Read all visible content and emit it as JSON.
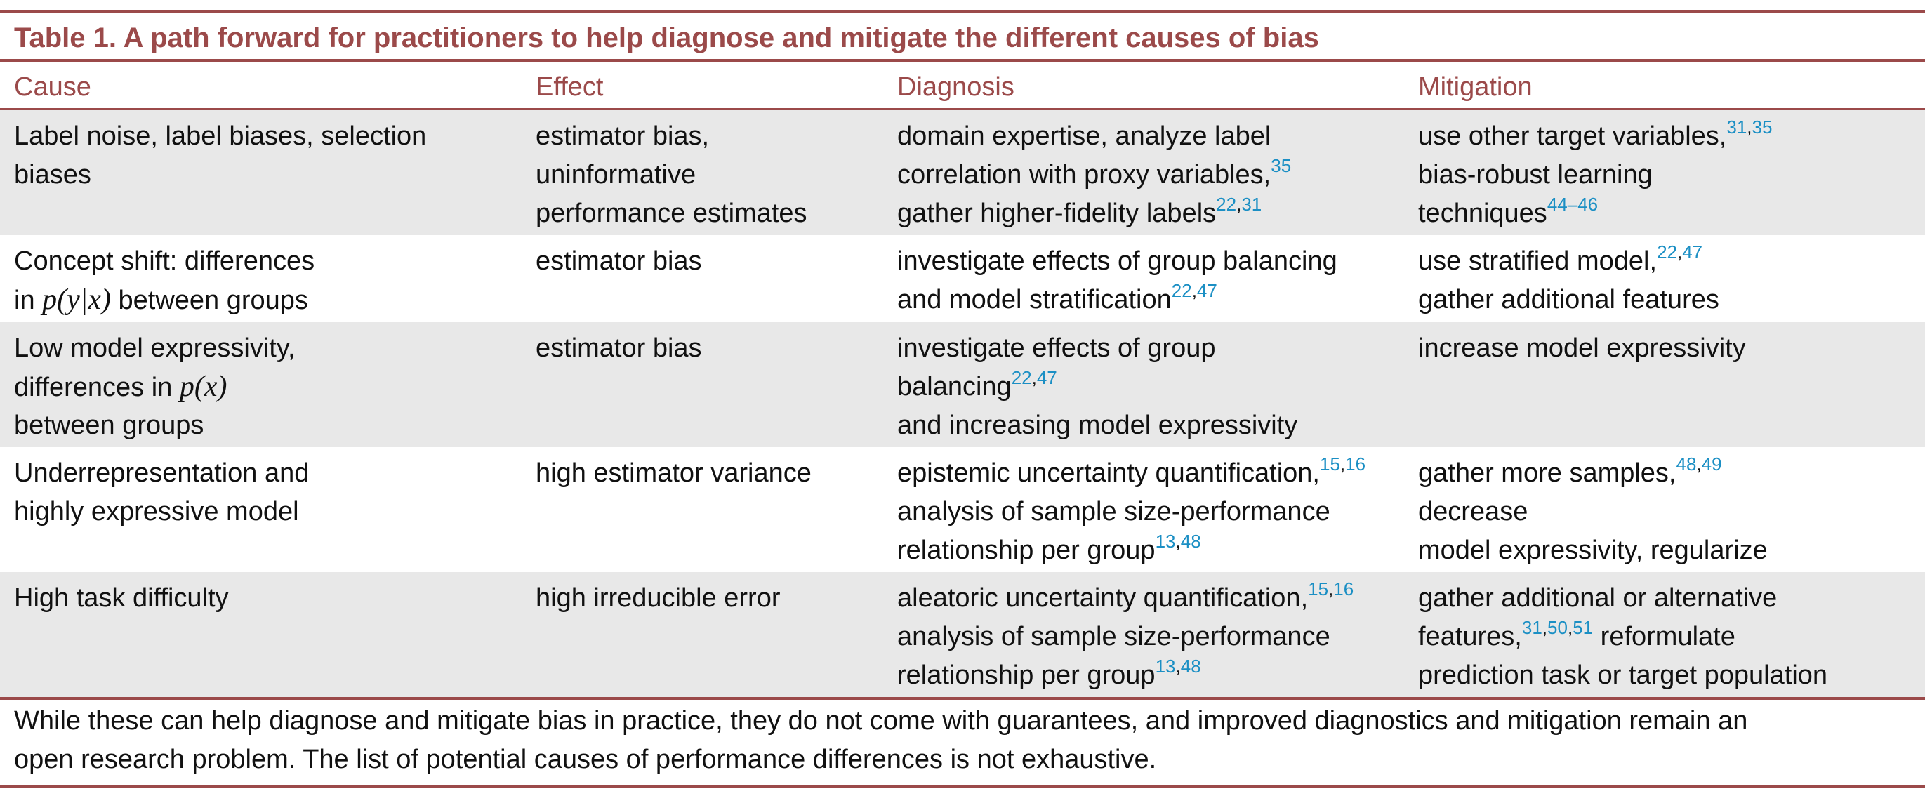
{
  "colors": {
    "accent": "#9b4a4a",
    "citation": "#1b8fc4",
    "row_shade": "#e8e8e8"
  },
  "table": {
    "title": "Table 1.  A path forward for practitioners to help diagnose and mitigate the different causes of bias",
    "headers": {
      "cause": "Cause",
      "effect": "Effect",
      "diagnosis": "Diagnosis",
      "mitigation": "Mitigation"
    },
    "rows": [
      {
        "cause": [
          "Label noise, label biases, selection",
          "biases"
        ],
        "effect": [
          "estimator bias,",
          "uninformative",
          "performance estimates"
        ],
        "diagnosis": {
          "l1": "domain expertise, analyze label",
          "l2": "correlation with proxy variables,",
          "l2_ref_a": "35",
          "l3": "gather higher-fidelity labels",
          "l3_ref_a": "22",
          "l3_ref_sep": ",",
          "l3_ref_b": "31"
        },
        "mitigation": {
          "l1": "use other target variables,",
          "l1_ref_a": "31",
          "l1_ref_sep": ",",
          "l1_ref_b": "35",
          "l2": "bias-robust learning",
          "l3": "techniques",
          "l3_ref_a": "44–46"
        }
      },
      {
        "cause": {
          "l1": "Concept shift: differences",
          "l2_pre": "in ",
          "l2_math": "p(y|x)",
          "l2_post": " between groups"
        },
        "effect": [
          "estimator bias"
        ],
        "diagnosis": {
          "l1": "investigate effects of group balancing",
          "l2": "and model stratification",
          "l2_ref_a": "22",
          "l2_ref_sep": ",",
          "l2_ref_b": "47"
        },
        "mitigation": {
          "l1": "use stratified model,",
          "l1_ref_a": "22",
          "l1_ref_sep": ",",
          "l1_ref_b": "47",
          "l2": "gather additional features"
        }
      },
      {
        "cause": {
          "l1": "Low model expressivity,",
          "l2_pre": "differences in ",
          "l2_math": "p(x)",
          "l3": "between groups"
        },
        "effect": [
          "estimator bias"
        ],
        "diagnosis": {
          "l1": "investigate effects of group",
          "l2": "balancing",
          "l2_ref_a": "22",
          "l2_ref_sep": ",",
          "l2_ref_b": "47",
          "l3": "and increasing model expressivity"
        },
        "mitigation": {
          "l1": "increase model expressivity"
        }
      },
      {
        "cause": [
          "Underrepresentation and",
          "highly expressive model"
        ],
        "effect": [
          "high estimator variance"
        ],
        "diagnosis": {
          "l1": "epistemic uncertainty quantification,",
          "l1_ref_a": "15",
          "l1_ref_sep": ",",
          "l1_ref_b": "16",
          "l2": "analysis of sample size-performance",
          "l3": "relationship per group",
          "l3_ref_a": "13",
          "l3_ref_sep": ",",
          "l3_ref_b": "48"
        },
        "mitigation": {
          "l1": "gather more samples,",
          "l1_ref_a": "48",
          "l1_ref_sep": ",",
          "l1_ref_b": "49",
          "l2": "decrease",
          "l3": "model expressivity, regularize"
        }
      },
      {
        "cause": [
          "High task difficulty"
        ],
        "effect": [
          "high irreducible error"
        ],
        "diagnosis": {
          "l1": "aleatoric uncertainty quantification,",
          "l1_ref_a": "15",
          "l1_ref_sep": ",",
          "l1_ref_b": "16",
          "l2": "analysis of sample size-performance",
          "l3": "relationship per group",
          "l3_ref_a": "13",
          "l3_ref_sep": ",",
          "l3_ref_b": "48"
        },
        "mitigation": {
          "l1": "gather additional or alternative",
          "l2": "features,",
          "l2_ref_a": "31",
          "l2_ref_sep1": ",",
          "l2_ref_b": "50",
          "l2_ref_sep2": ",",
          "l2_ref_c": "51",
          "l2_post": " reformulate",
          "l3": "prediction task or target population"
        }
      }
    ],
    "footnote": [
      "While these can help diagnose and mitigate bias in practice, they do not come with guarantees, and improved diagnostics and mitigation remain an",
      "open research problem. The list of potential causes of performance differences is not exhaustive."
    ]
  }
}
